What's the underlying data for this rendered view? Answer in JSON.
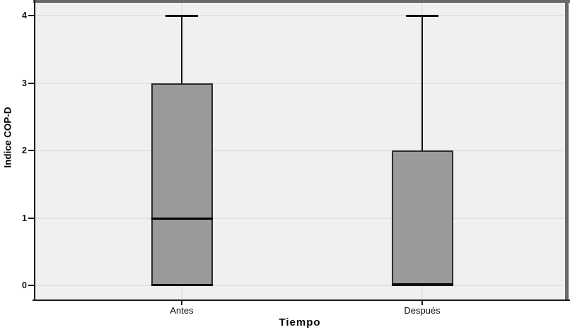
{
  "figure": {
    "bg": "#ffffff",
    "plot_bg": "#f0f0f0",
    "grid_color": "#e2e2e2",
    "frame_dark": "#696969",
    "axis_color": "#1a1a1a",
    "box_fill": "#9a9a9a",
    "box_border": "#2b2b2b",
    "median_color": "#000000",
    "whisker_color": "#111111"
  },
  "chart_data": {
    "type": "box",
    "title": "",
    "xlabel": "Tiempo",
    "ylabel": "Indice COP-D",
    "categories": [
      "Antes",
      "Después"
    ],
    "ylim": [
      0,
      4
    ],
    "yticks": [
      "0",
      "1",
      "2",
      "3",
      "4"
    ],
    "grid": true,
    "legend": false,
    "series": [
      {
        "name": "Antes",
        "min": 0,
        "q1": 0,
        "median": 1,
        "q3": 3,
        "max": 4
      },
      {
        "name": "Después",
        "min": 0,
        "q1": 0,
        "median": 0,
        "q3": 2,
        "max": 4
      }
    ]
  }
}
